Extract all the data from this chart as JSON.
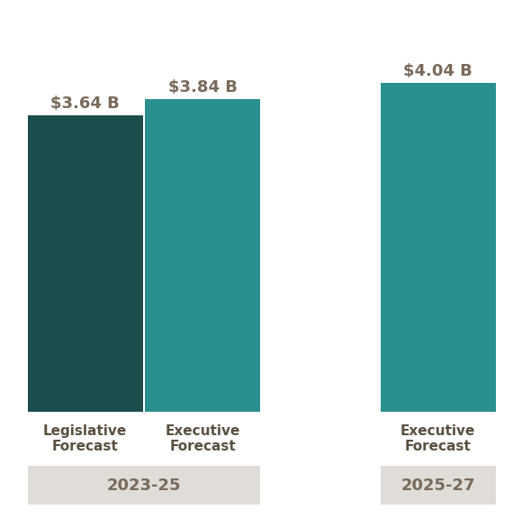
{
  "bars": [
    {
      "label": "Legislative\nForecast",
      "value": 3.64,
      "color": "#1b4d4d",
      "x": 0
    },
    {
      "label": "Executive\nForecast",
      "value": 3.84,
      "color": "#2a8f8f",
      "x": 1
    },
    {
      "label": "Executive\nForecast",
      "value": 4.04,
      "color": "#2a8f8f",
      "x": 3
    }
  ],
  "value_labels": [
    "$3.64 B",
    "$3.84 B",
    "$4.04 B"
  ],
  "group_labels": [
    "2023-25",
    "2025-27"
  ],
  "group_label_color": "#7a6a5a",
  "group_label_bg": "#e0ddd8",
  "group_label_fontsize": 13,
  "bar_label_fontsize": 11,
  "value_label_fontsize": 13,
  "ylim": [
    0,
    4.6
  ],
  "background_color": "#ffffff",
  "grid_color": "#e0e0e0",
  "text_color": "#7a6a5a",
  "bar_width": 0.98,
  "xlim": [
    -0.55,
    3.55
  ]
}
